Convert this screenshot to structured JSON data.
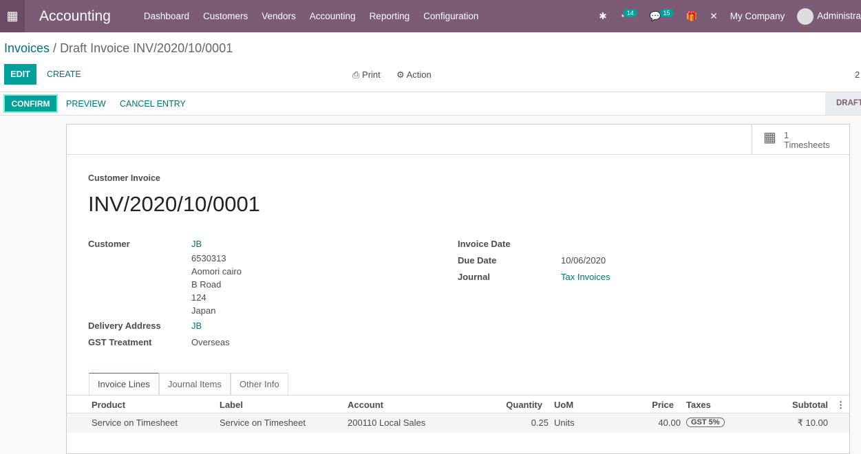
{
  "nav": {
    "app": "Accounting",
    "menu": [
      "Dashboard",
      "Customers",
      "Vendors",
      "Accounting",
      "Reporting",
      "Configuration"
    ],
    "activities_count": "14",
    "messages_count": "15",
    "company": "My Company",
    "user": "Administra"
  },
  "breadcrumb": {
    "parent": "Invoices",
    "current": "Draft Invoice INV/2020/10/0001"
  },
  "toolbar": {
    "edit": "EDIT",
    "create": "CREATE",
    "print": "Print",
    "action": "Action",
    "pager": "2"
  },
  "statusbar": {
    "confirm": "CONFIRM",
    "preview": "PREVIEW",
    "cancel": "CANCEL ENTRY",
    "state": "DRAFT"
  },
  "smart_button": {
    "count": "1",
    "label": "Timesheets"
  },
  "invoice": {
    "type": "Customer Invoice",
    "number": "INV/2020/10/0001",
    "customer_label": "Customer",
    "customer": "JB",
    "address": [
      "6530313",
      "Aomori cairo",
      "B Road",
      "124",
      "Japan"
    ],
    "delivery_label": "Delivery Address",
    "delivery": "JB",
    "gst_label": "GST Treatment",
    "gst": "Overseas",
    "invoice_date_label": "Invoice Date",
    "due_date_label": "Due Date",
    "due_date": "10/06/2020",
    "journal_label": "Journal",
    "journal": "Tax Invoices"
  },
  "tabs": [
    "Invoice Lines",
    "Journal Items",
    "Other Info"
  ],
  "table": {
    "headers": [
      "Product",
      "Label",
      "Account",
      "Quantity",
      "UoM",
      "Price",
      "Taxes",
      "Subtotal"
    ],
    "rows": [
      {
        "product": "Service on Timesheet",
        "label": "Service on Timesheet",
        "account": "200110 Local Sales",
        "quantity": "0.25",
        "uom": "Units",
        "price": "40.00",
        "taxes": "GST 5%",
        "subtotal": "₹ 10.00"
      }
    ]
  }
}
